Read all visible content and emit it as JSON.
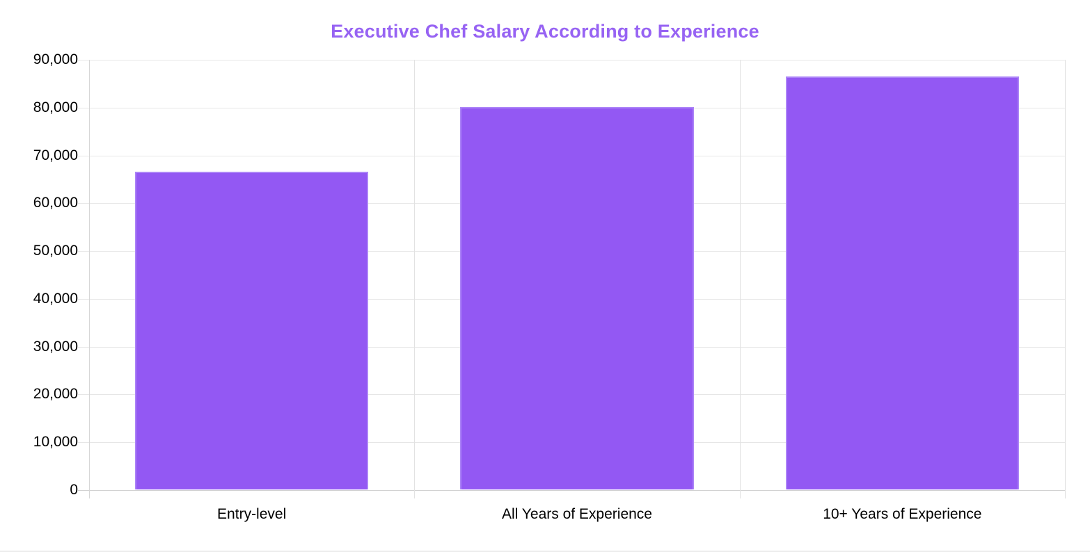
{
  "title": "Executive Chef Salary According to Experience",
  "colors": {
    "title_text": "#9763F3",
    "bar_fill": "#9358F3",
    "bar_border": "#AC84F7",
    "gridline": "#E6E6E6",
    "axis_line": "#D2D2D2",
    "label_text": "#000000"
  },
  "chart_data": {
    "type": "bar",
    "title": "Executive Chef Salary According to Experience",
    "categories": [
      "Entry-level",
      "All Years of Experience",
      "10+ Years of Experience"
    ],
    "values": [
      66400,
      80000,
      86400
    ],
    "xlabel": "",
    "ylabel": "",
    "ylim": [
      0,
      90000
    ],
    "ytick_step": 10000,
    "ytick_labels": [
      "0",
      "10,000",
      "20,000",
      "30,000",
      "40,000",
      "50,000",
      "60,000",
      "70,000",
      "80,000",
      "90,000"
    ],
    "grid": true,
    "legend": false,
    "bar_width_fraction": 0.717
  }
}
